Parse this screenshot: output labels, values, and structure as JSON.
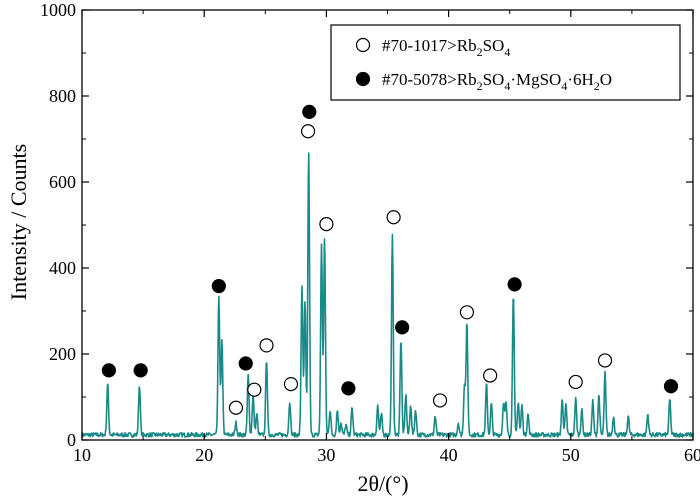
{
  "chart_data": {
    "type": "line",
    "xlabel": "2θ/(°)",
    "ylabel": "Intensity / Counts",
    "xlim": [
      10,
      60
    ],
    "ylim": [
      0,
      1000
    ],
    "x_ticks": [
      10,
      20,
      30,
      40,
      50,
      60
    ],
    "y_ticks": [
      0,
      200,
      400,
      600,
      800,
      1000
    ],
    "grid": false,
    "legend_position": "top-right",
    "line_color": "#1a8a86",
    "baseline": 12,
    "noise": 5,
    "peaks": [
      {
        "x": 12.1,
        "y": 130
      },
      {
        "x": 14.7,
        "y": 128
      },
      {
        "x": 21.2,
        "y": 335
      },
      {
        "x": 21.45,
        "y": 230
      },
      {
        "x": 22.6,
        "y": 40
      },
      {
        "x": 23.6,
        "y": 150
      },
      {
        "x": 24.0,
        "y": 105
      },
      {
        "x": 24.3,
        "y": 60
      },
      {
        "x": 25.1,
        "y": 190
      },
      {
        "x": 27.0,
        "y": 90
      },
      {
        "x": 28.0,
        "y": 360
      },
      {
        "x": 28.25,
        "y": 320
      },
      {
        "x": 28.55,
        "y": 670
      },
      {
        "x": 29.6,
        "y": 455
      },
      {
        "x": 29.85,
        "y": 470
      },
      {
        "x": 30.3,
        "y": 70
      },
      {
        "x": 30.9,
        "y": 70
      },
      {
        "x": 31.2,
        "y": 40
      },
      {
        "x": 31.6,
        "y": 35
      },
      {
        "x": 32.1,
        "y": 75
      },
      {
        "x": 34.2,
        "y": 80
      },
      {
        "x": 34.5,
        "y": 60
      },
      {
        "x": 35.4,
        "y": 475
      },
      {
        "x": 36.1,
        "y": 235
      },
      {
        "x": 36.5,
        "y": 105
      },
      {
        "x": 36.9,
        "y": 80
      },
      {
        "x": 37.3,
        "y": 70
      },
      {
        "x": 38.9,
        "y": 55
      },
      {
        "x": 40.8,
        "y": 40
      },
      {
        "x": 41.3,
        "y": 130
      },
      {
        "x": 41.5,
        "y": 270
      },
      {
        "x": 43.1,
        "y": 130
      },
      {
        "x": 43.5,
        "y": 85
      },
      {
        "x": 44.5,
        "y": 90
      },
      {
        "x": 44.7,
        "y": 85
      },
      {
        "x": 45.3,
        "y": 345
      },
      {
        "x": 45.7,
        "y": 90
      },
      {
        "x": 46.0,
        "y": 80
      },
      {
        "x": 46.5,
        "y": 60
      },
      {
        "x": 49.3,
        "y": 95
      },
      {
        "x": 49.6,
        "y": 80
      },
      {
        "x": 50.4,
        "y": 95
      },
      {
        "x": 50.9,
        "y": 70
      },
      {
        "x": 51.8,
        "y": 90
      },
      {
        "x": 52.3,
        "y": 105
      },
      {
        "x": 52.8,
        "y": 155
      },
      {
        "x": 53.5,
        "y": 55
      },
      {
        "x": 54.7,
        "y": 55
      },
      {
        "x": 56.3,
        "y": 60
      },
      {
        "x": 58.1,
        "y": 95
      }
    ],
    "markers": [
      {
        "x": 12.2,
        "y": 162,
        "type": "filled"
      },
      {
        "x": 14.8,
        "y": 162,
        "type": "filled"
      },
      {
        "x": 21.2,
        "y": 358,
        "type": "filled"
      },
      {
        "x": 22.6,
        "y": 75,
        "type": "open"
      },
      {
        "x": 23.4,
        "y": 178,
        "type": "filled"
      },
      {
        "x": 24.1,
        "y": 117,
        "type": "open"
      },
      {
        "x": 25.1,
        "y": 220,
        "type": "open"
      },
      {
        "x": 27.1,
        "y": 130,
        "type": "open"
      },
      {
        "x": 28.5,
        "y": 718,
        "type": "open"
      },
      {
        "x": 28.6,
        "y": 763,
        "type": "filled"
      },
      {
        "x": 30.0,
        "y": 502,
        "type": "open"
      },
      {
        "x": 31.8,
        "y": 120,
        "type": "filled"
      },
      {
        "x": 35.5,
        "y": 518,
        "type": "open"
      },
      {
        "x": 36.2,
        "y": 262,
        "type": "filled"
      },
      {
        "x": 39.3,
        "y": 92,
        "type": "open"
      },
      {
        "x": 41.5,
        "y": 297,
        "type": "open"
      },
      {
        "x": 43.4,
        "y": 150,
        "type": "open"
      },
      {
        "x": 45.4,
        "y": 362,
        "type": "filled"
      },
      {
        "x": 50.4,
        "y": 135,
        "type": "open"
      },
      {
        "x": 52.8,
        "y": 185,
        "type": "open"
      },
      {
        "x": 58.2,
        "y": 125,
        "type": "filled"
      }
    ],
    "legend": [
      {
        "type": "open",
        "prefix": "#70-1017>",
        "formula": [
          [
            "Rb",
            ""
          ],
          [
            "2",
            "sub"
          ],
          [
            "SO",
            ""
          ],
          [
            "4",
            "sub"
          ]
        ]
      },
      {
        "type": "filled",
        "prefix": "#70-5078>",
        "formula": [
          [
            "Rb",
            ""
          ],
          [
            "2",
            "sub"
          ],
          [
            "SO",
            ""
          ],
          [
            "4",
            "sub"
          ],
          [
            "·MgSO",
            ""
          ],
          [
            "4",
            "sub"
          ],
          [
            "·6H",
            ""
          ],
          [
            "2",
            "sub"
          ],
          [
            "O",
            ""
          ]
        ]
      }
    ]
  }
}
